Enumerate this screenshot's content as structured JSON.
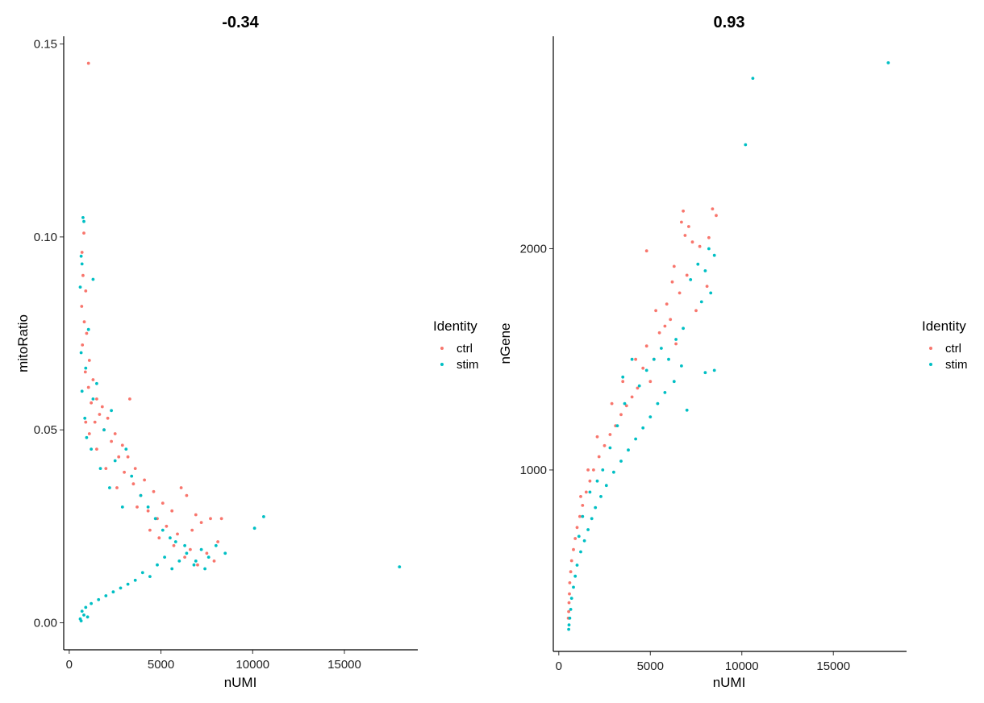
{
  "chart_data": [
    {
      "type": "scatter",
      "title": "-0.34",
      "xlabel": "nUMI",
      "ylabel": "mitoRatio",
      "xlim": [
        -300,
        19000
      ],
      "ylim": [
        -0.007,
        0.152
      ],
      "xticks": [
        0,
        5000,
        10000,
        15000
      ],
      "xtick_labels": [
        "0",
        "5000",
        "10000",
        "15000"
      ],
      "yticks": [
        0.0,
        0.05,
        0.1,
        0.15
      ],
      "ytick_labels": [
        "0.00",
        "0.05",
        "0.10",
        "0.15"
      ],
      "grid": false,
      "legend": {
        "title": "Identity",
        "placement": "right",
        "entries": [
          "ctrl",
          "stim"
        ]
      },
      "series": [
        {
          "name": "ctrl",
          "color": "#F8766D",
          "points": [
            [
              1050,
              0.145
            ],
            [
              800,
              0.101
            ],
            [
              700,
              0.096
            ],
            [
              750,
              0.09
            ],
            [
              900,
              0.086
            ],
            [
              680,
              0.082
            ],
            [
              820,
              0.078
            ],
            [
              950,
              0.075
            ],
            [
              720,
              0.072
            ],
            [
              1100,
              0.068
            ],
            [
              880,
              0.065
            ],
            [
              1300,
              0.063
            ],
            [
              1050,
              0.061
            ],
            [
              1500,
              0.058
            ],
            [
              3300,
              0.058
            ],
            [
              1800,
              0.056
            ],
            [
              2100,
              0.053
            ],
            [
              1400,
              0.052
            ],
            [
              2500,
              0.049
            ],
            [
              2900,
              0.046
            ],
            [
              3200,
              0.043
            ],
            [
              3600,
              0.04
            ],
            [
              4100,
              0.037
            ],
            [
              4600,
              0.034
            ],
            [
              5100,
              0.031
            ],
            [
              5600,
              0.029
            ],
            [
              6100,
              0.035
            ],
            [
              6400,
              0.033
            ],
            [
              6900,
              0.028
            ],
            [
              7200,
              0.026
            ],
            [
              7700,
              0.027
            ],
            [
              8300,
              0.027
            ],
            [
              8100,
              0.021
            ],
            [
              7500,
              0.018
            ],
            [
              6700,
              0.024
            ],
            [
              5900,
              0.023
            ],
            [
              5300,
              0.025
            ],
            [
              4800,
              0.027
            ],
            [
              4300,
              0.029
            ],
            [
              3900,
              0.033
            ],
            [
              3500,
              0.036
            ],
            [
              3000,
              0.039
            ],
            [
              2700,
              0.043
            ],
            [
              2300,
              0.047
            ],
            [
              1900,
              0.05
            ],
            [
              1650,
              0.054
            ],
            [
              1200,
              0.057
            ],
            [
              4400,
              0.024
            ],
            [
              5700,
              0.02
            ],
            [
              6300,
              0.017
            ],
            [
              7000,
              0.015
            ],
            [
              7900,
              0.016
            ],
            [
              2600,
              0.035
            ],
            [
              2000,
              0.04
            ],
            [
              1500,
              0.045
            ],
            [
              1100,
              0.049
            ],
            [
              900,
              0.052
            ],
            [
              3700,
              0.03
            ],
            [
              4900,
              0.022
            ],
            [
              6600,
              0.019
            ]
          ]
        },
        {
          "name": "stim",
          "color": "#00BFC4",
          "points": [
            [
              18000,
              0.0145
            ],
            [
              10600,
              0.0275
            ],
            [
              10100,
              0.0245
            ],
            [
              8500,
              0.018
            ],
            [
              8000,
              0.02
            ],
            [
              7600,
              0.017
            ],
            [
              7200,
              0.019
            ],
            [
              6800,
              0.015
            ],
            [
              6400,
              0.018
            ],
            [
              6000,
              0.016
            ],
            [
              5600,
              0.014
            ],
            [
              5200,
              0.017
            ],
            [
              4800,
              0.015
            ],
            [
              4400,
              0.012
            ],
            [
              4000,
              0.013
            ],
            [
              3600,
              0.011
            ],
            [
              3200,
              0.01
            ],
            [
              2800,
              0.009
            ],
            [
              2400,
              0.008
            ],
            [
              2000,
              0.007
            ],
            [
              1600,
              0.006
            ],
            [
              1200,
              0.005
            ],
            [
              900,
              0.004
            ],
            [
              700,
              0.003
            ],
            [
              600,
              0.001
            ],
            [
              650,
              0.0005
            ],
            [
              800,
              0.002
            ],
            [
              1000,
              0.0015
            ],
            [
              750,
              0.105
            ],
            [
              800,
              0.104
            ],
            [
              650,
              0.095
            ],
            [
              700,
              0.093
            ],
            [
              1300,
              0.089
            ],
            [
              600,
              0.087
            ],
            [
              1050,
              0.076
            ],
            [
              650,
              0.07
            ],
            [
              900,
              0.066
            ],
            [
              1500,
              0.062
            ],
            [
              700,
              0.06
            ],
            [
              1300,
              0.058
            ],
            [
              2300,
              0.055
            ],
            [
              850,
              0.053
            ],
            [
              1900,
              0.05
            ],
            [
              3100,
              0.045
            ],
            [
              2500,
              0.042
            ],
            [
              3400,
              0.038
            ],
            [
              3900,
              0.033
            ],
            [
              4300,
              0.03
            ],
            [
              4700,
              0.027
            ],
            [
              5100,
              0.024
            ],
            [
              5500,
              0.022
            ],
            [
              5800,
              0.021
            ],
            [
              6300,
              0.02
            ],
            [
              6900,
              0.016
            ],
            [
              7400,
              0.014
            ],
            [
              2900,
              0.03
            ],
            [
              2200,
              0.035
            ],
            [
              1700,
              0.04
            ],
            [
              1200,
              0.045
            ],
            [
              950,
              0.048
            ]
          ]
        }
      ]
    },
    {
      "type": "scatter",
      "title": "0.93",
      "xlabel": "nUMI",
      "ylabel": "nGene",
      "xlim": [
        -300,
        19000
      ],
      "ylim": [
        180,
        2960
      ],
      "xticks": [
        0,
        5000,
        10000,
        15000
      ],
      "xtick_labels": [
        "0",
        "5000",
        "10000",
        "15000"
      ],
      "yticks": [
        1000,
        2000
      ],
      "ytick_labels": [
        "1000",
        "2000"
      ],
      "grid": false,
      "legend": {
        "title": "Identity",
        "placement": "right",
        "entries": [
          "ctrl",
          "stim"
        ]
      },
      "series": [
        {
          "name": "ctrl",
          "color": "#F8766D",
          "points": [
            [
              6800,
              2170
            ],
            [
              8400,
              2180
            ],
            [
              6700,
              2120
            ],
            [
              7100,
              2100
            ],
            [
              8600,
              2150
            ],
            [
              6900,
              2060
            ],
            [
              7300,
              2030
            ],
            [
              8200,
              2050
            ],
            [
              4800,
              1990
            ],
            [
              7700,
              2010
            ],
            [
              6300,
              1920
            ],
            [
              7000,
              1880
            ],
            [
              8100,
              1830
            ],
            [
              6600,
              1800
            ],
            [
              5900,
              1750
            ],
            [
              7500,
              1720
            ],
            [
              6100,
              1680
            ],
            [
              5500,
              1620
            ],
            [
              6400,
              1570
            ],
            [
              4800,
              1560
            ],
            [
              5200,
              1500
            ],
            [
              4600,
              1460
            ],
            [
              5000,
              1400
            ],
            [
              4300,
              1370
            ],
            [
              4000,
              1330
            ],
            [
              3700,
              1290
            ],
            [
              3400,
              1250
            ],
            [
              3100,
              1200
            ],
            [
              2800,
              1160
            ],
            [
              2500,
              1110
            ],
            [
              2200,
              1060
            ],
            [
              1900,
              1000
            ],
            [
              1700,
              950
            ],
            [
              1500,
              900
            ],
            [
              1300,
              840
            ],
            [
              1150,
              790
            ],
            [
              1000,
              740
            ],
            [
              900,
              690
            ],
            [
              800,
              640
            ],
            [
              700,
              590
            ],
            [
              650,
              540
            ],
            [
              600,
              490
            ],
            [
              580,
              440
            ],
            [
              560,
              400
            ],
            [
              540,
              360
            ],
            [
              520,
              330
            ],
            [
              3500,
              1400
            ],
            [
              2900,
              1300
            ],
            [
              4200,
              1500
            ],
            [
              5800,
              1650
            ],
            [
              2100,
              1150
            ],
            [
              1600,
              1000
            ],
            [
              1200,
              880
            ],
            [
              6200,
              1850
            ],
            [
              5300,
              1720
            ]
          ]
        },
        {
          "name": "stim",
          "color": "#00BFC4",
          "points": [
            [
              18000,
              2840
            ],
            [
              10600,
              2770
            ],
            [
              10200,
              2470
            ],
            [
              8500,
              1970
            ],
            [
              8200,
              2000
            ],
            [
              7600,
              1930
            ],
            [
              8000,
              1900
            ],
            [
              7200,
              1860
            ],
            [
              8300,
              1800
            ],
            [
              7800,
              1760
            ],
            [
              6800,
              1640
            ],
            [
              6400,
              1590
            ],
            [
              8500,
              1450
            ],
            [
              8000,
              1440
            ],
            [
              6700,
              1470
            ],
            [
              7000,
              1270
            ],
            [
              6300,
              1400
            ],
            [
              5800,
              1350
            ],
            [
              5400,
              1300
            ],
            [
              5000,
              1240
            ],
            [
              4600,
              1190
            ],
            [
              4200,
              1140
            ],
            [
              3800,
              1090
            ],
            [
              3400,
              1040
            ],
            [
              3000,
              990
            ],
            [
              2600,
              930
            ],
            [
              2300,
              880
            ],
            [
              2000,
              830
            ],
            [
              1800,
              780
            ],
            [
              1600,
              730
            ],
            [
              1400,
              680
            ],
            [
              1200,
              630
            ],
            [
              1000,
              570
            ],
            [
              900,
              520
            ],
            [
              800,
              470
            ],
            [
              700,
              420
            ],
            [
              650,
              370
            ],
            [
              600,
              330
            ],
            [
              560,
              300
            ],
            [
              540,
              280
            ],
            [
              3600,
              1300
            ],
            [
              3200,
              1200
            ],
            [
              2800,
              1100
            ],
            [
              2400,
              1000
            ],
            [
              4400,
              1380
            ],
            [
              4800,
              1450
            ],
            [
              5200,
              1500
            ],
            [
              4000,
              1500
            ],
            [
              3500,
              1420
            ],
            [
              5600,
              1550
            ],
            [
              6000,
              1500
            ],
            [
              1700,
              900
            ],
            [
              1300,
              790
            ],
            [
              1100,
              700
            ],
            [
              2100,
              950
            ]
          ]
        }
      ]
    }
  ]
}
